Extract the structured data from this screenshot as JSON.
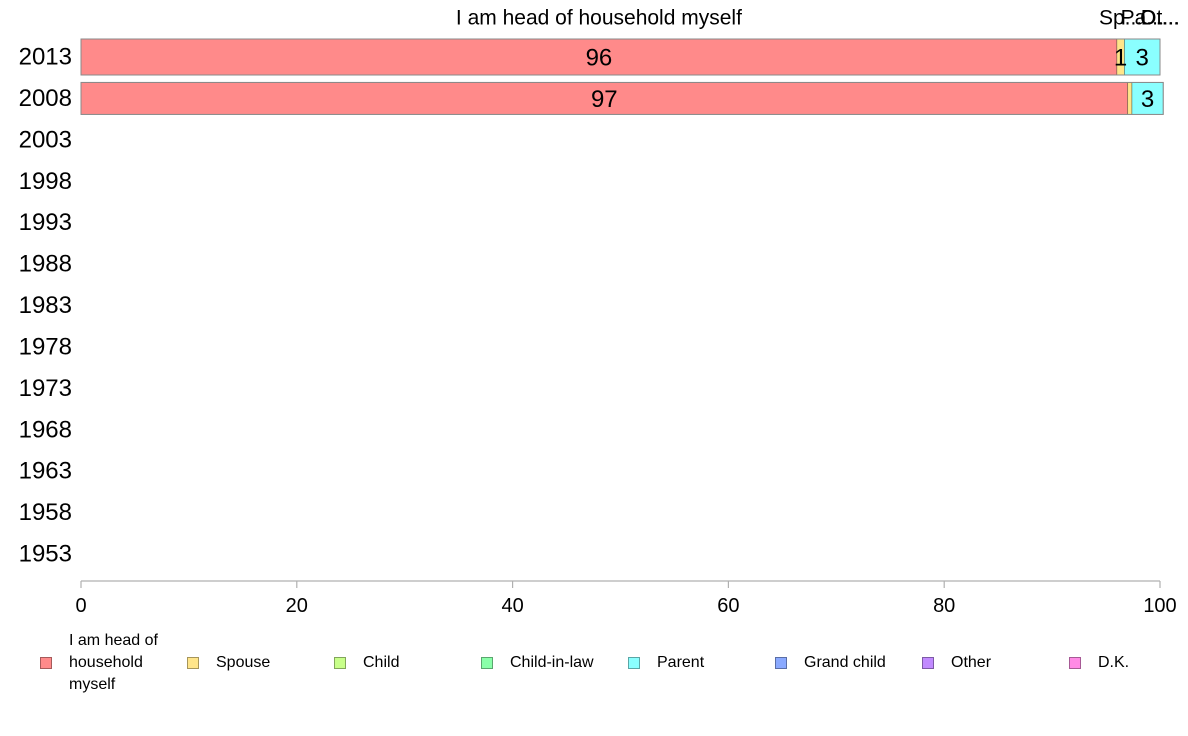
{
  "chart_data": {
    "type": "bar",
    "orientation": "horizontal",
    "stacked": true,
    "categories": [
      "2013",
      "2008",
      "2003",
      "1998",
      "1993",
      "1988",
      "1983",
      "1978",
      "1973",
      "1968",
      "1963",
      "1958",
      "1953"
    ],
    "xlim": [
      0,
      100
    ],
    "x_ticks": [
      "0",
      "20",
      "40",
      "60",
      "80",
      "100"
    ],
    "series": [
      {
        "name": "I am head of household myself",
        "color": "#ff8a8a",
        "values": [
          96,
          97,
          null,
          null,
          null,
          null,
          null,
          null,
          null,
          null,
          null,
          null,
          null
        ]
      },
      {
        "name": "Spouse",
        "color": "#ffe58a",
        "values": [
          0.7,
          0.4,
          null,
          null,
          null,
          null,
          null,
          null,
          null,
          null,
          null,
          null,
          null
        ]
      },
      {
        "name": "Child",
        "color": "#c8ff8a",
        "values": [
          0,
          0,
          null,
          null,
          null,
          null,
          null,
          null,
          null,
          null,
          null,
          null,
          null
        ]
      },
      {
        "name": "Child-in-law",
        "color": "#8affa9",
        "values": [
          0,
          0,
          null,
          null,
          null,
          null,
          null,
          null,
          null,
          null,
          null,
          null,
          null
        ]
      },
      {
        "name": "Parent",
        "color": "#8affff",
        "values": [
          3.3,
          2.9,
          null,
          null,
          null,
          null,
          null,
          null,
          null,
          null,
          null,
          null,
          null
        ]
      },
      {
        "name": "Grand child",
        "color": "#8aa9ff",
        "values": [
          0,
          0,
          null,
          null,
          null,
          null,
          null,
          null,
          null,
          null,
          null,
          null,
          null
        ]
      },
      {
        "name": "Other",
        "color": "#c18aff",
        "values": [
          0,
          0,
          null,
          null,
          null,
          null,
          null,
          null,
          null,
          null,
          null,
          null,
          null
        ]
      },
      {
        "name": "D.K.",
        "color": "#ff8ae5",
        "values": [
          0,
          0,
          null,
          null,
          null,
          null,
          null,
          null,
          null,
          null,
          null,
          null,
          null
        ]
      }
    ],
    "data_labels": [
      {
        "category": "2013",
        "series": "I am head of household myself",
        "text": "96"
      },
      {
        "category": "2013",
        "series": "Spouse",
        "text": "1"
      },
      {
        "category": "2013",
        "series": "Parent",
        "text": "3"
      },
      {
        "category": "2008",
        "series": "I am head of household myself",
        "text": "97"
      },
      {
        "category": "2008",
        "series": "Parent",
        "text": "3"
      }
    ],
    "column_headers": [
      {
        "series": "I am head of household myself",
        "text": "I am head of household myself"
      },
      {
        "series": "Spouse",
        "text": "Sp..."
      },
      {
        "series": "Parent",
        "text": "Pa..."
      },
      {
        "series": "Other",
        "text": "Ot..."
      },
      {
        "series": "D.K.",
        "text": "D...."
      }
    ],
    "grid": false,
    "legend_position": "bottom"
  },
  "legend": [
    {
      "label": "I am head of\nhousehold\nmyself",
      "color": "#ff8a8a"
    },
    {
      "label": "Spouse",
      "color": "#ffe58a"
    },
    {
      "label": "Child",
      "color": "#c8ff8a"
    },
    {
      "label": "Child-in-law",
      "color": "#8affa9"
    },
    {
      "label": "Parent",
      "color": "#8affff"
    },
    {
      "label": "Grand child",
      "color": "#8aa9ff"
    },
    {
      "label": "Other",
      "color": "#c18aff"
    },
    {
      "label": "D.K.",
      "color": "#ff8ae5"
    }
  ]
}
